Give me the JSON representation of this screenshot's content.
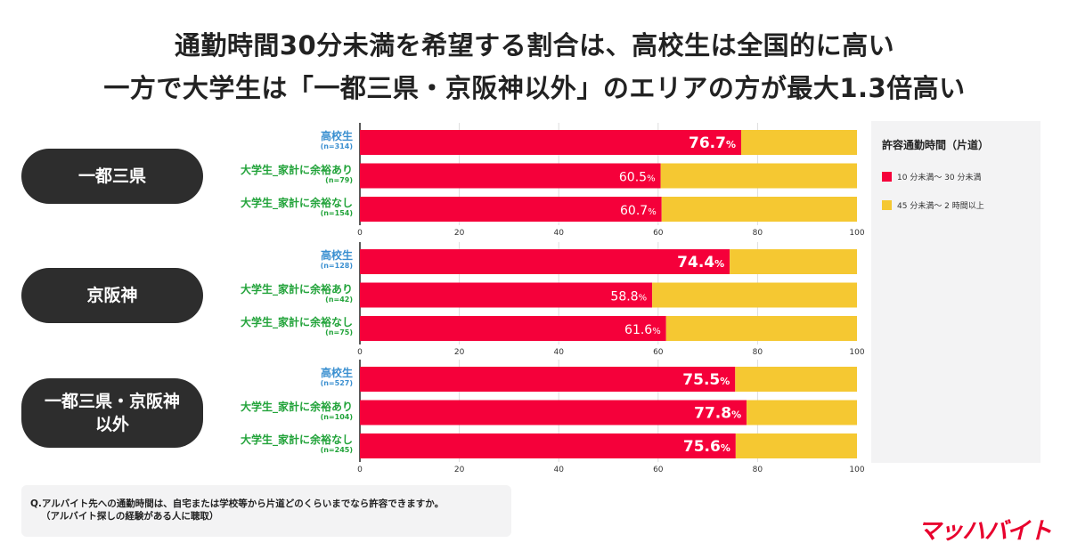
{
  "title": {
    "line1": "通勤時間30分未満を希望する割合は、高校生は全国的に高い",
    "line2": "一方で大学生は「一都三県・京阪神以外」のエリアの方が最大1.3倍高い"
  },
  "colors": {
    "short": "#f5003a",
    "long": "#f5c832",
    "high_school_label": "#3a8fd0",
    "university_label": "#22a33a"
  },
  "chart_data": {
    "type": "bar",
    "stacked": true,
    "orientation": "horizontal",
    "xlim": [
      0,
      100
    ],
    "xticks": [
      0,
      20,
      40,
      60,
      80,
      100
    ],
    "grid": true,
    "legend_title": "許容通勤時間（片道）",
    "legend_position": "right",
    "series": [
      {
        "name": "10 分未満〜 30 分未満"
      },
      {
        "name": "45 分未満〜 2 時間以上"
      }
    ],
    "groups": [
      {
        "name": "一都三県",
        "rows": [
          {
            "label": "高校生",
            "n": "(n=314)",
            "value": 76.7,
            "display": "76.7"
          },
          {
            "label": "大学生_家計に余裕あり",
            "n": "(n=79)",
            "value": 60.5,
            "display": "60.5"
          },
          {
            "label": "大学生_家計に余裕なし",
            "n": "(n=154)",
            "value": 60.7,
            "display": "60.7"
          }
        ]
      },
      {
        "name": "京阪神",
        "rows": [
          {
            "label": "高校生",
            "n": "(n=128)",
            "value": 74.4,
            "display": "74.4"
          },
          {
            "label": "大学生_家計に余裕あり",
            "n": "(n=42)",
            "value": 58.8,
            "display": "58.8"
          },
          {
            "label": "大学生_家計に余裕なし",
            "n": "(n=75)",
            "value": 61.6,
            "display": "61.6"
          }
        ]
      },
      {
        "name": "一都三県・京阪神\n以外",
        "rows": [
          {
            "label": "高校生",
            "n": "(n=527)",
            "value": 75.5,
            "display": "75.5"
          },
          {
            "label": "大学生_家計に余裕あり",
            "n": "(n=104)",
            "value": 77.8,
            "display": "77.8"
          },
          {
            "label": "大学生_家計に余裕なし",
            "n": "(n=245)",
            "value": 75.6,
            "display": "75.6"
          }
        ]
      }
    ]
  },
  "question": {
    "line1": "Q.アルバイト先への通勤時間は、自宅または学校等から片道どのくらいまでなら許容できますか。",
    "line2": "（アルバイト探しの経験がある人に聴取）"
  },
  "logo": "マッハバイト"
}
